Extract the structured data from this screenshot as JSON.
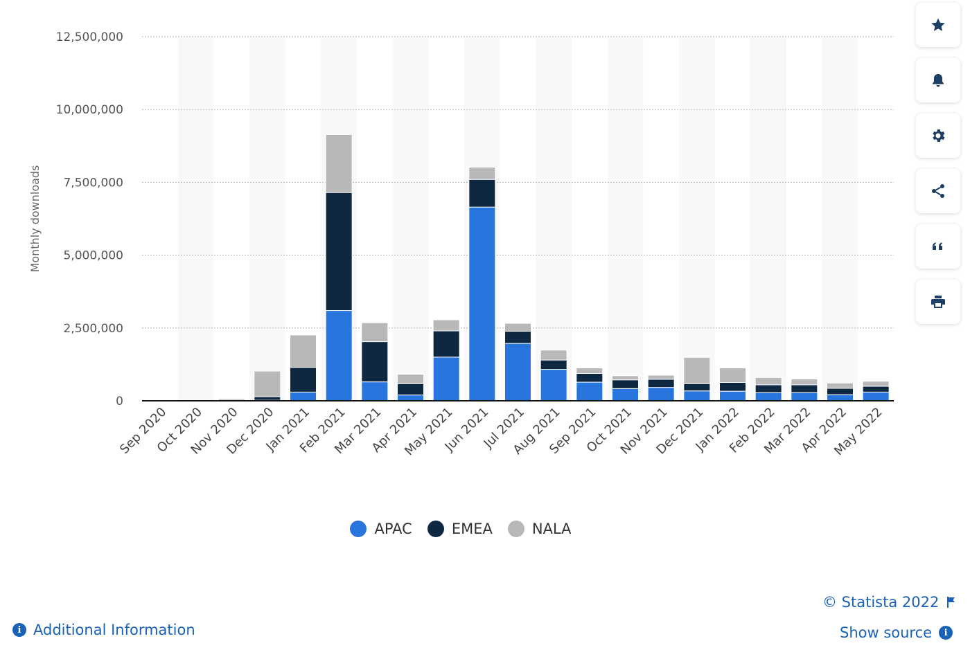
{
  "chart_data": {
    "type": "bar",
    "stacked": true,
    "ylabel": "Monthly downloads",
    "ylim": [
      0,
      12500000
    ],
    "yticks": [
      0,
      2500000,
      5000000,
      7500000,
      10000000,
      12500000
    ],
    "ytick_labels": [
      "0",
      "2,500,000",
      "5,000,000",
      "7,500,000",
      "10,000,000",
      "12,500,000"
    ],
    "grid": true,
    "legend_position": "bottom",
    "categories": [
      "Sep 2020",
      "Oct 2020",
      "Nov 2020",
      "Dec 2020",
      "Jan 2021",
      "Feb 2021",
      "Mar 2021",
      "Apr 2021",
      "May 2021",
      "Jun 2021",
      "Jul 2021",
      "Aug 2021",
      "Sep 2021",
      "Oct 2021",
      "Nov 2021",
      "Dec 2021",
      "Jan 2022",
      "Feb 2022",
      "Mar 2022",
      "Apr 2022",
      "May 2022"
    ],
    "series": [
      {
        "name": "APAC",
        "color": "#2876dd",
        "values": [
          0,
          0,
          0,
          20000,
          300000,
          3100000,
          650000,
          200000,
          1500000,
          6650000,
          1970000,
          1080000,
          640000,
          420000,
          460000,
          340000,
          330000,
          280000,
          280000,
          210000,
          300000
        ]
      },
      {
        "name": "EMEA",
        "color": "#0f2841",
        "values": [
          5000,
          5000,
          20000,
          120000,
          850000,
          4050000,
          1380000,
          390000,
          900000,
          950000,
          420000,
          320000,
          300000,
          300000,
          280000,
          250000,
          300000,
          270000,
          270000,
          220000,
          200000
        ]
      },
      {
        "name": "NALA",
        "color": "#b8b8b8",
        "values": [
          5000,
          5000,
          50000,
          880000,
          1110000,
          1990000,
          650000,
          320000,
          380000,
          420000,
          270000,
          340000,
          190000,
          140000,
          140000,
          900000,
          500000,
          250000,
          200000,
          180000,
          170000
        ]
      }
    ]
  },
  "toolbar": [
    "star-icon",
    "bell-icon",
    "gear-icon",
    "share-icon",
    "quote-icon",
    "print-icon"
  ],
  "footer": {
    "copyright": "© Statista 2022",
    "show_source": "Show source",
    "additional_info": "Additional Information"
  }
}
